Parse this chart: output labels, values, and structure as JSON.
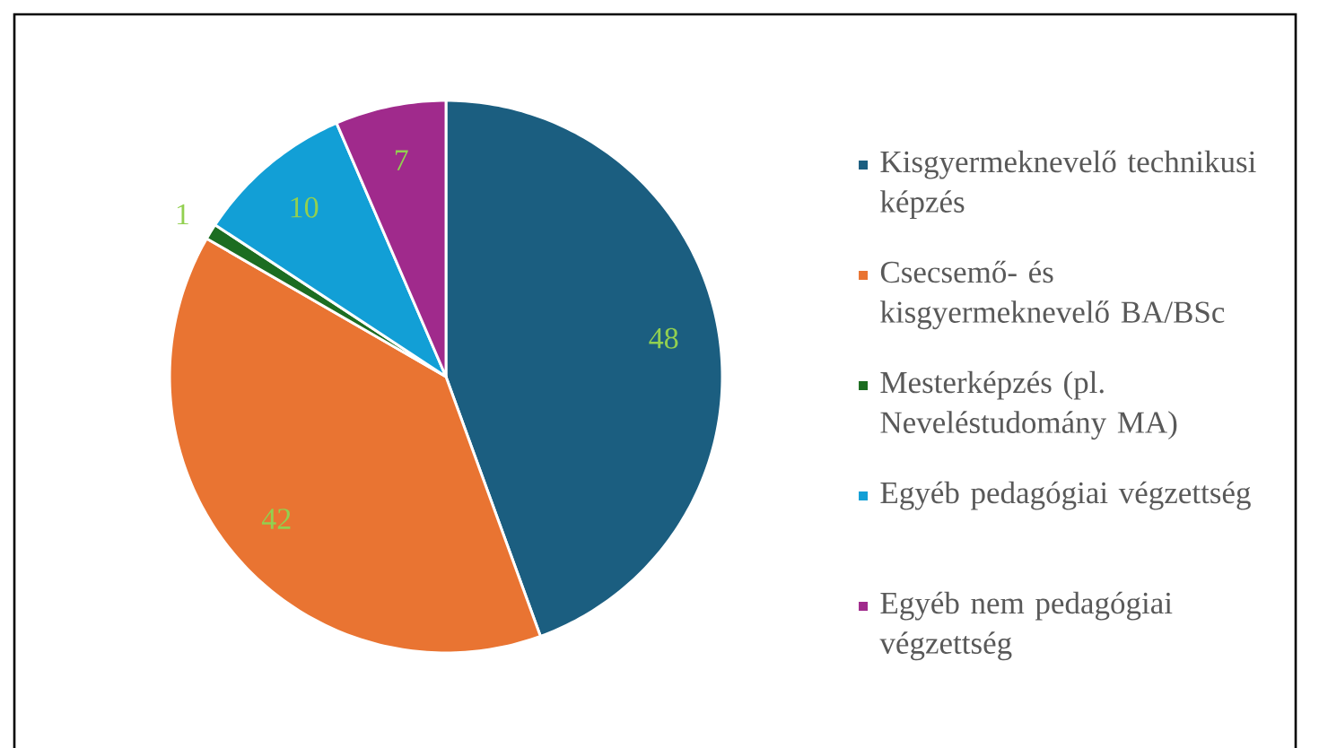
{
  "chart_data": {
    "type": "pie",
    "categories": [
      "Kisgyermeknevelő technikusi képzés",
      "Csecsemő- és kisgyermeknevelő BA/BSc",
      "Mesterképzés (pl. Neveléstudomány MA)",
      "Egyéb pedagógiai végzettség",
      "Egyéb nem pedagógiai végzettség"
    ],
    "values": [
      48,
      42,
      1,
      10,
      7
    ],
    "colors": [
      "#1b5e80",
      "#e97432",
      "#1c6d21",
      "#129fd6",
      "#a02a8c"
    ],
    "data_labels": true,
    "legend": "right"
  }
}
